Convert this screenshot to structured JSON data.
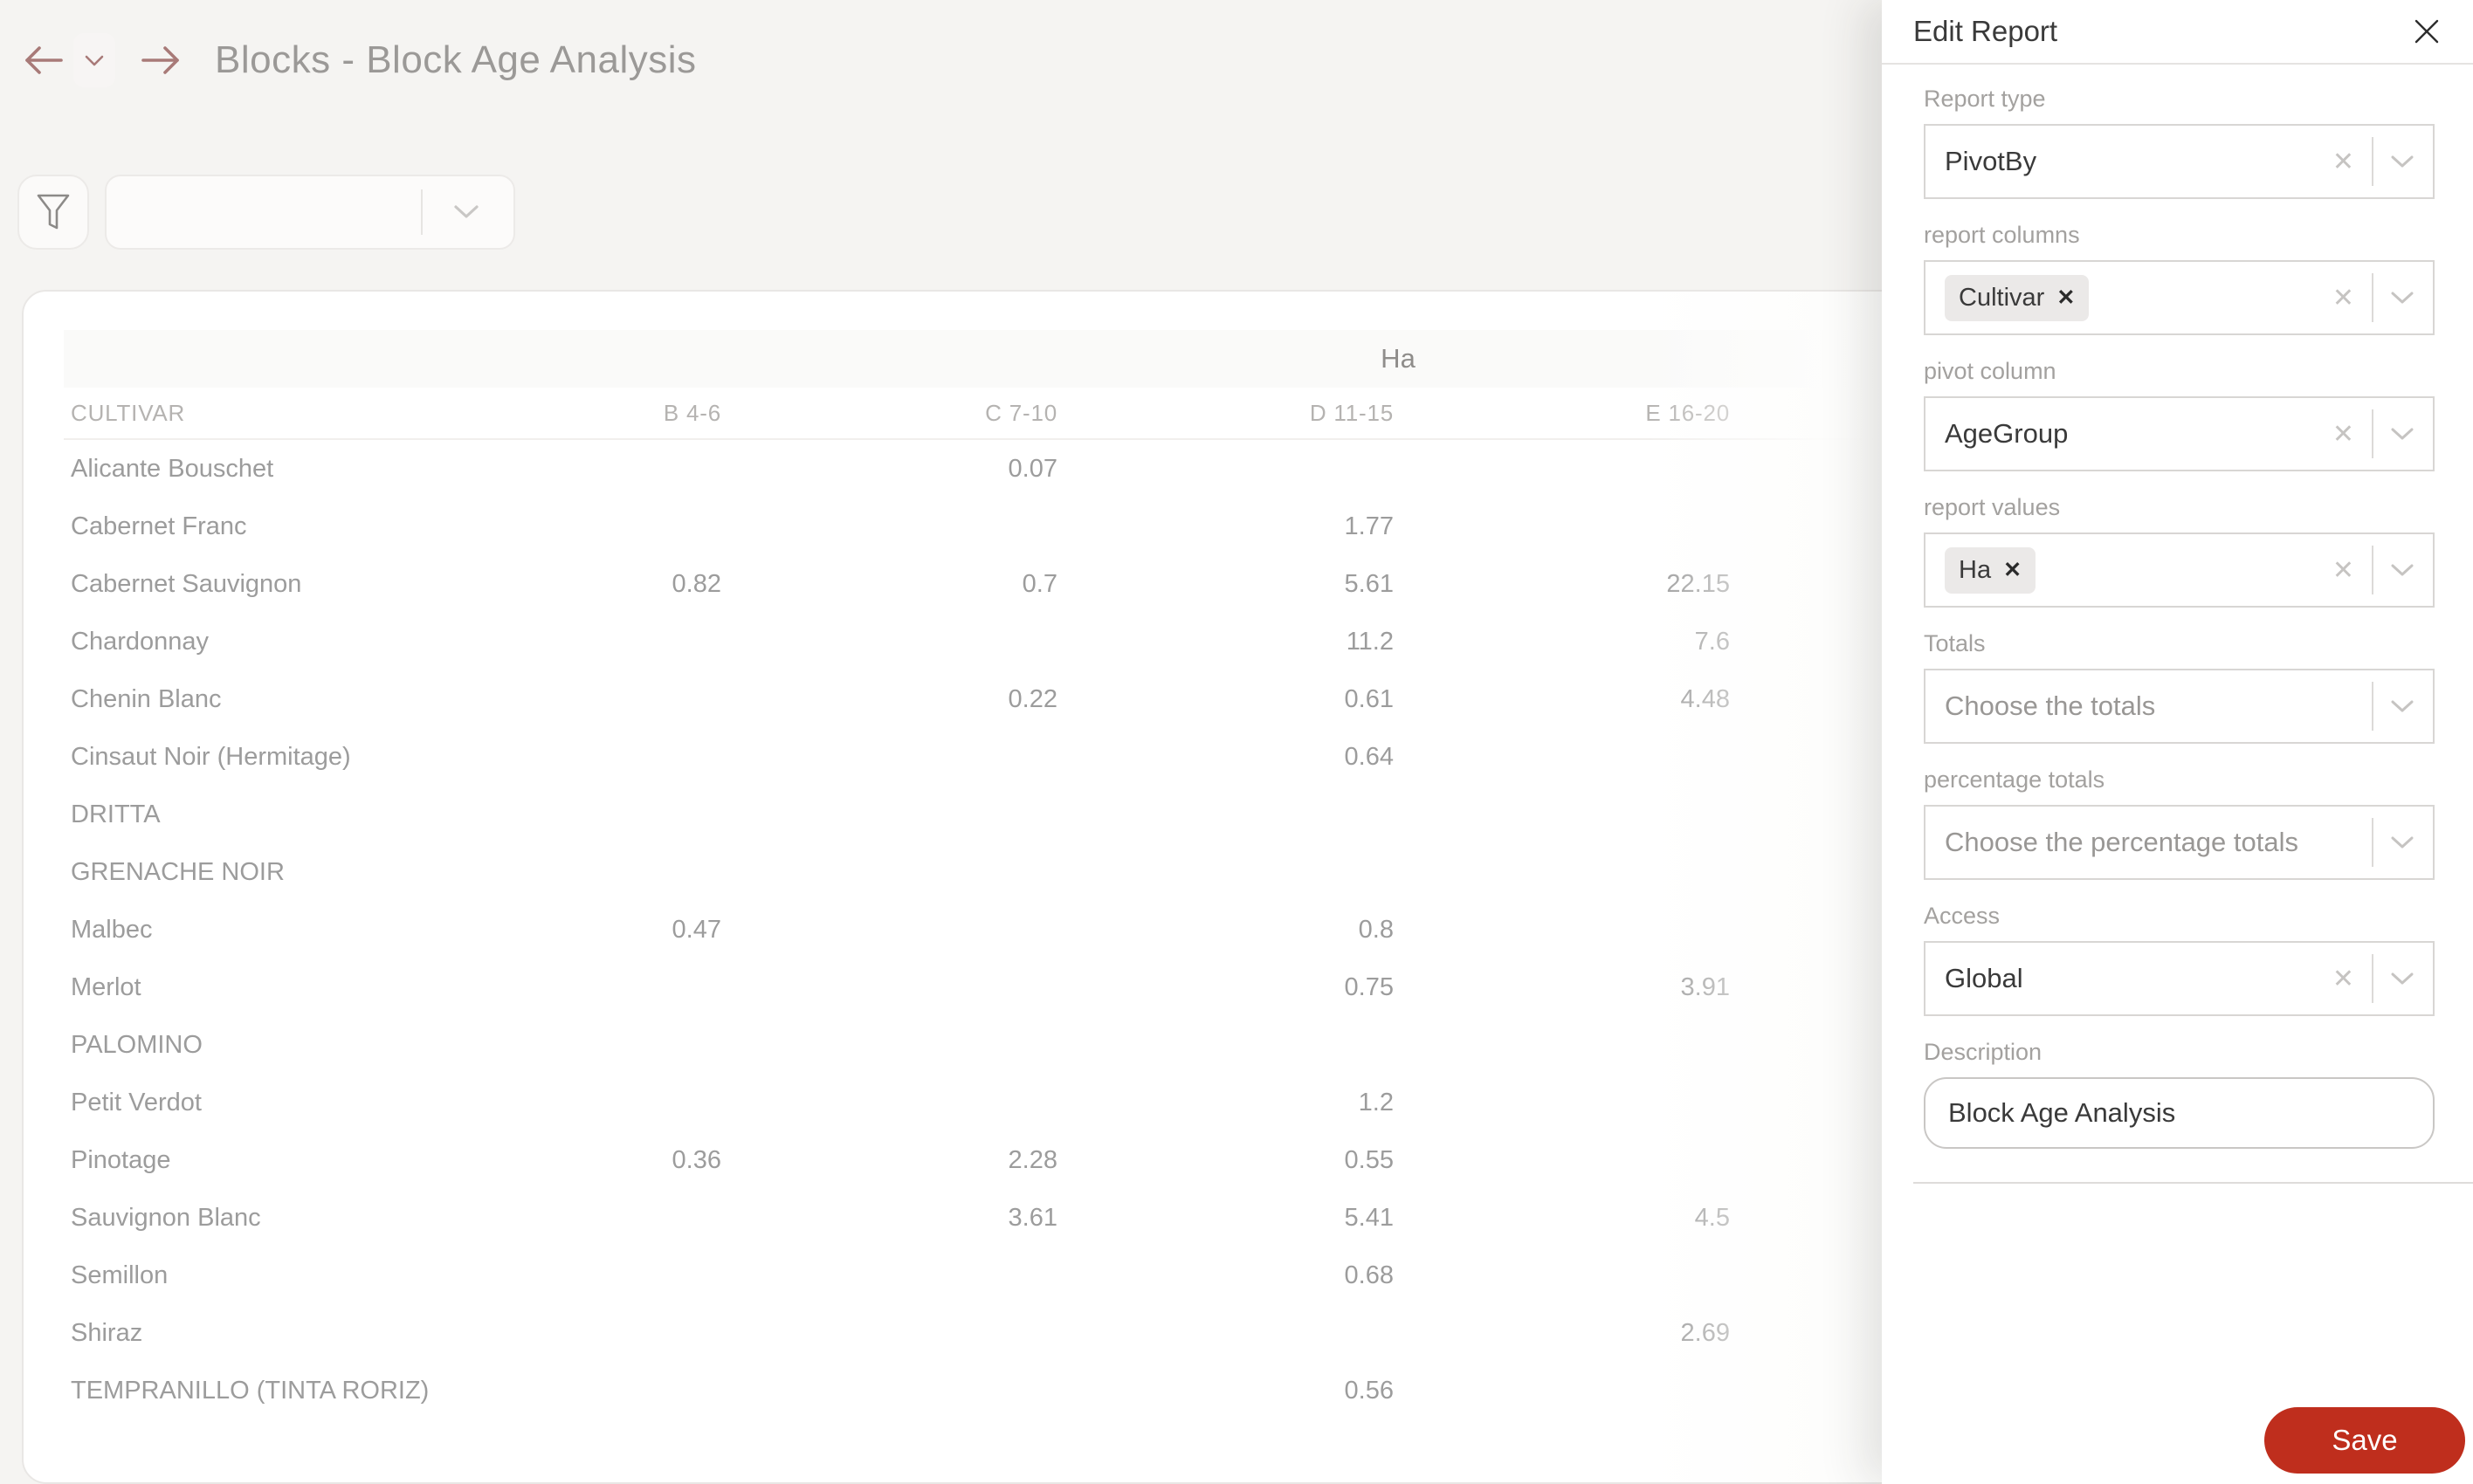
{
  "header": {
    "title": "Blocks - Block Age Analysis",
    "back_icon": "arrow-left",
    "history_icon": "chevron-down",
    "forward_icon": "arrow-right"
  },
  "toolbar": {
    "filter_icon": "funnel",
    "filter_select_value": ""
  },
  "table": {
    "group_header": "Ha",
    "columns": [
      "CULTIVAR",
      "B 4-6",
      "C 7-10",
      "D 11-15",
      "E 16-20"
    ],
    "rows": [
      {
        "cultivar": "Alicante Bouschet",
        "values": [
          "",
          "0.07",
          "",
          ""
        ]
      },
      {
        "cultivar": "Cabernet Franc",
        "values": [
          "",
          "",
          "1.77",
          ""
        ]
      },
      {
        "cultivar": "Cabernet Sauvignon",
        "values": [
          "0.82",
          "0.7",
          "5.61",
          "22.15"
        ]
      },
      {
        "cultivar": "Chardonnay",
        "values": [
          "",
          "",
          "11.2",
          "7.6"
        ]
      },
      {
        "cultivar": "Chenin Blanc",
        "values": [
          "",
          "0.22",
          "0.61",
          "4.48"
        ]
      },
      {
        "cultivar": "Cinsaut Noir (Hermitage)",
        "values": [
          "",
          "",
          "0.64",
          ""
        ]
      },
      {
        "cultivar": "DRITTA",
        "values": [
          "",
          "",
          "",
          ""
        ]
      },
      {
        "cultivar": "GRENACHE NOIR",
        "values": [
          "",
          "",
          "",
          ""
        ]
      },
      {
        "cultivar": "Malbec",
        "values": [
          "0.47",
          "",
          "0.8",
          ""
        ]
      },
      {
        "cultivar": "Merlot",
        "values": [
          "",
          "",
          "0.75",
          "3.91"
        ]
      },
      {
        "cultivar": "PALOMINO",
        "values": [
          "",
          "",
          "",
          ""
        ]
      },
      {
        "cultivar": "Petit Verdot",
        "values": [
          "",
          "",
          "1.2",
          ""
        ]
      },
      {
        "cultivar": "Pinotage",
        "values": [
          "0.36",
          "2.28",
          "0.55",
          ""
        ]
      },
      {
        "cultivar": "Sauvignon Blanc",
        "values": [
          "",
          "3.61",
          "5.41",
          "4.5"
        ]
      },
      {
        "cultivar": "Semillon",
        "values": [
          "",
          "",
          "0.68",
          ""
        ]
      },
      {
        "cultivar": "Shiraz",
        "values": [
          "",
          "",
          "",
          "2.69"
        ]
      },
      {
        "cultivar": "TEMPRANILLO (TINTA RORIZ)",
        "values": [
          "",
          "",
          "0.56",
          ""
        ]
      }
    ]
  },
  "panel": {
    "title": "Edit Report",
    "close_icon": "close-x",
    "fields": [
      {
        "label": "Report type",
        "type": "select",
        "value": "PivotBy",
        "clearable": true
      },
      {
        "label": "report columns",
        "type": "multiselect",
        "tags": [
          "Cultivar"
        ],
        "clearable": true
      },
      {
        "label": "pivot column",
        "type": "select",
        "value": "AgeGroup",
        "clearable": true
      },
      {
        "label": "report values",
        "type": "multiselect",
        "tags": [
          "Ha"
        ],
        "clearable": true
      },
      {
        "label": "Totals",
        "type": "select",
        "placeholder": "Choose the totals",
        "clearable": false
      },
      {
        "label": "percentage totals",
        "type": "select",
        "placeholder": "Choose the percentage totals",
        "clearable": false
      },
      {
        "label": "Access",
        "type": "select",
        "value": "Global",
        "clearable": true
      },
      {
        "label": "Description",
        "type": "text",
        "value": "Block Age Analysis"
      }
    ],
    "save_label": "Save"
  },
  "colors": {
    "accent_red": "#bf2e1d",
    "nav_arrow": "#a87a78",
    "table_text": "#9c9c9c"
  }
}
